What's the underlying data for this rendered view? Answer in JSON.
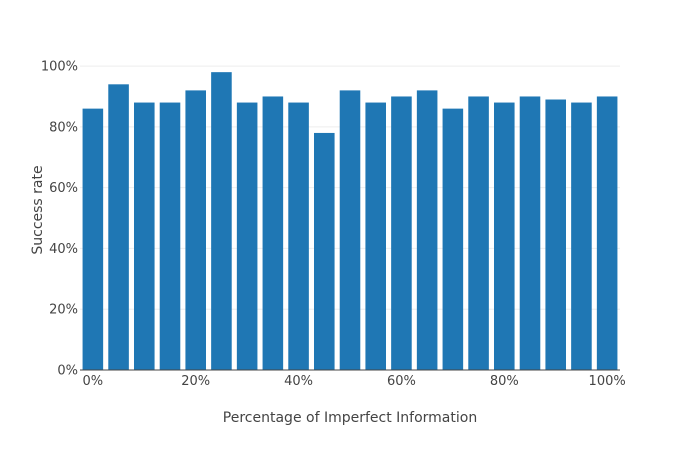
{
  "chart_data": {
    "type": "bar",
    "title": "",
    "xlabel": "Percentage of Imperfect Information",
    "ylabel": "Success rate",
    "x": [
      0,
      5,
      10,
      15,
      20,
      25,
      30,
      35,
      40,
      45,
      50,
      55,
      60,
      65,
      70,
      75,
      80,
      85,
      90,
      95,
      100
    ],
    "values": [
      86,
      94,
      88,
      88,
      92,
      98,
      88,
      90,
      88,
      78,
      92,
      88,
      90,
      92,
      86,
      90,
      88,
      90,
      89,
      88,
      90
    ],
    "xlim": [
      -2.5,
      102.5
    ],
    "ylim": [
      0,
      102
    ],
    "x_ticks": [
      0,
      20,
      40,
      60,
      80,
      100
    ],
    "x_tick_labels": [
      "0%",
      "20%",
      "40%",
      "60%",
      "80%",
      "100%"
    ],
    "y_ticks": [
      0,
      20,
      40,
      60,
      80,
      100
    ],
    "y_tick_labels": [
      "0%",
      "20%",
      "40%",
      "60%",
      "80%",
      "100%"
    ],
    "grid": true,
    "bar_color": "#1f77b4"
  }
}
